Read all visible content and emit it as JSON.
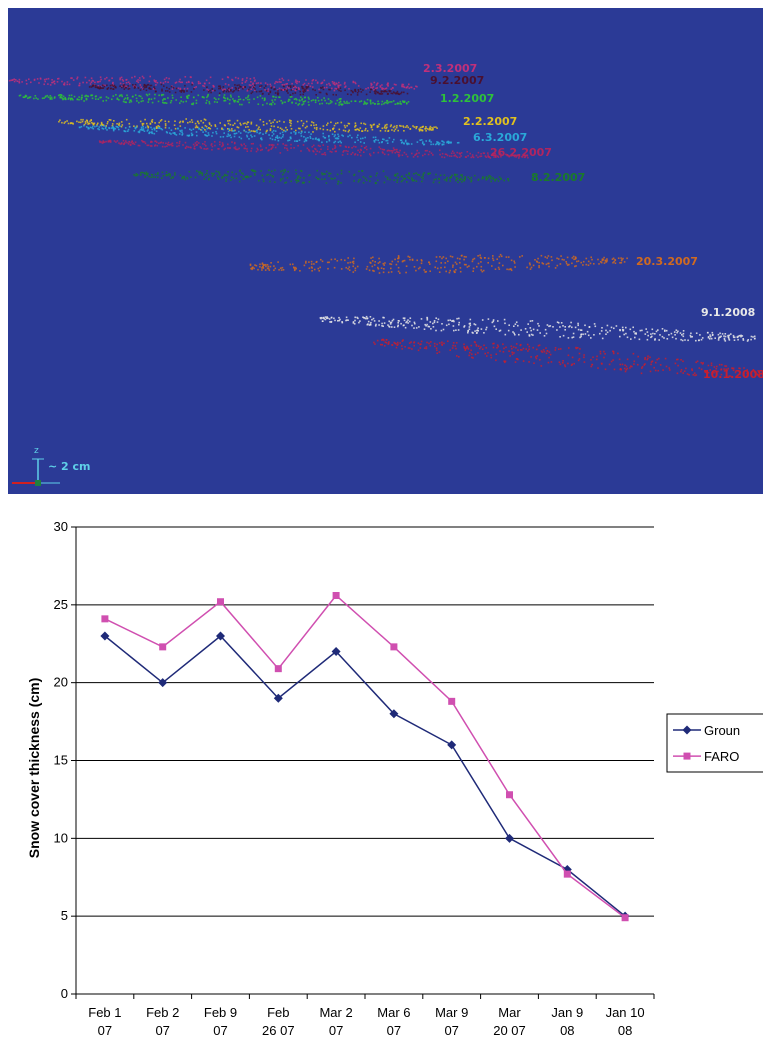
{
  "scan_panel": {
    "background": "#2b3a96",
    "scale_label": "~ 2 cm",
    "axis_label": "z",
    "layers": [
      {
        "label": "2.3.2007",
        "color": "#c0307a"
      },
      {
        "label": "9.2.2007",
        "color": "#4a1030"
      },
      {
        "label": "1.2.2007",
        "color": "#2ec23a"
      },
      {
        "label": "2.2.2007",
        "color": "#e0c020"
      },
      {
        "label": "6.3.2007",
        "color": "#2aa8d8"
      },
      {
        "label": "26.2.2007",
        "color": "#b02560"
      },
      {
        "label": "8.2.2007",
        "color": "#1a7a2a"
      },
      {
        "label": "20.3.2007",
        "color": "#d06a20"
      },
      {
        "label": "9.1.2008",
        "color": "#e8e8e8"
      },
      {
        "label": "10.1.2008",
        "color": "#c81e2e"
      }
    ]
  },
  "chart_data": {
    "type": "line",
    "categories": [
      [
        "Feb 1",
        "07"
      ],
      [
        "Feb 2",
        "07"
      ],
      [
        "Feb 9",
        "07"
      ],
      [
        "Feb",
        "26 07"
      ],
      [
        "Mar 2",
        "07"
      ],
      [
        "Mar 6",
        "07"
      ],
      [
        "Mar 9",
        "07"
      ],
      [
        "Mar",
        "20 07"
      ],
      [
        "Jan 9",
        "08"
      ],
      [
        "Jan 10",
        "08"
      ]
    ],
    "series": [
      {
        "name": "Groun",
        "color": "#1f2a78",
        "marker": "diamond",
        "values": [
          23,
          20,
          23,
          19,
          22,
          18,
          16,
          10,
          8,
          5
        ]
      },
      {
        "name": "FARO",
        "color": "#d04fb0",
        "marker": "square",
        "values": [
          24.1,
          22.3,
          25.2,
          20.9,
          25.6,
          22.3,
          18.8,
          12.8,
          7.7,
          4.9
        ]
      }
    ],
    "ylabel": "Snow cover thickness (cm)",
    "xlabel": "",
    "ylim": [
      0,
      30
    ],
    "yticks": [
      0,
      5,
      10,
      15,
      20,
      25,
      30
    ],
    "grid": true,
    "legend_position": "right"
  }
}
